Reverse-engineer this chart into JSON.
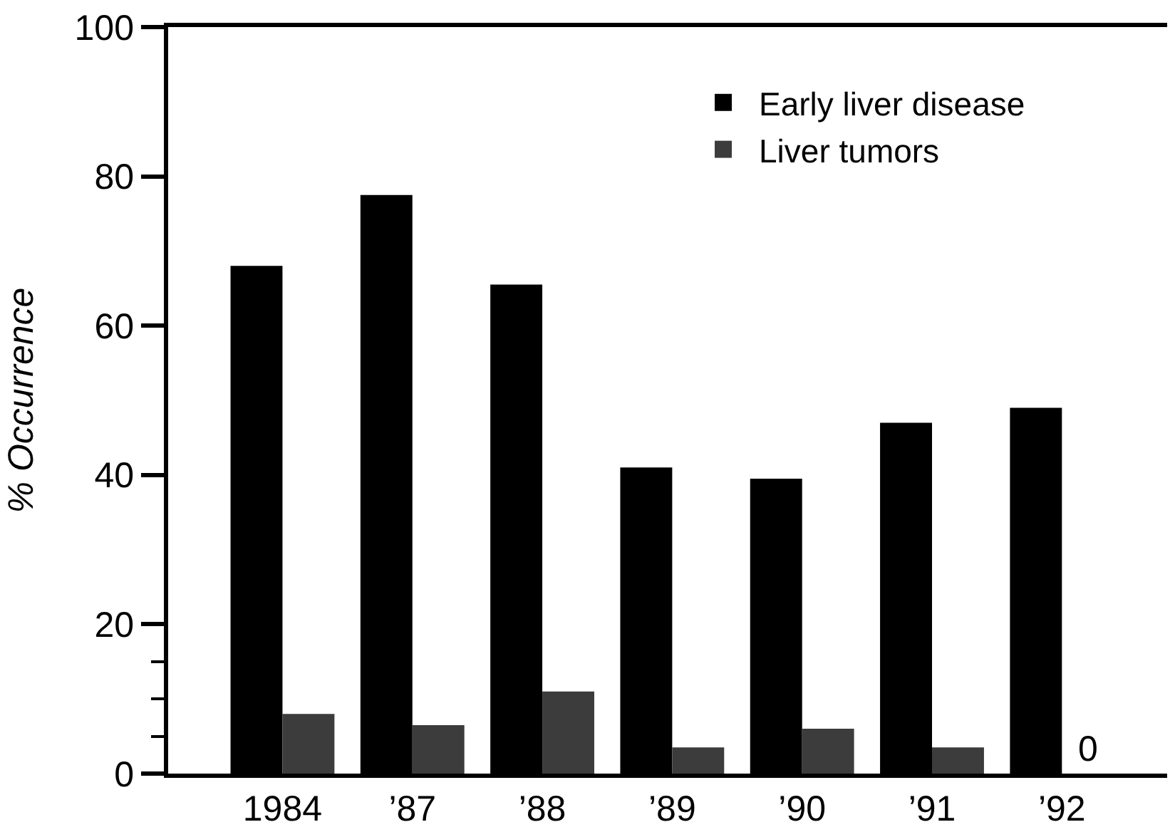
{
  "chart_data": {
    "type": "bar",
    "ylabel": "% Occurrence",
    "categories": [
      "1984",
      "’87",
      "’88",
      "’89",
      "’90",
      "’91",
      "’92"
    ],
    "series": [
      {
        "name": "Early liver disease",
        "color": "#000000",
        "values": [
          68,
          77.5,
          65.5,
          41,
          39.5,
          47,
          49
        ]
      },
      {
        "name": "Liver tumors",
        "color": "#3c3c3c",
        "values": [
          8,
          6.5,
          11,
          3.5,
          6,
          3.5,
          0
        ],
        "value_labels": [
          null,
          null,
          null,
          null,
          null,
          null,
          "0"
        ]
      }
    ],
    "ylim": [
      0,
      100
    ],
    "yticks": [
      0,
      {
        "value": 5,
        "label": null
      },
      {
        "value": 10,
        "label": null
      },
      {
        "value": 15,
        "label": null
      },
      20,
      40,
      60,
      80,
      100
    ],
    "legend": "top right"
  }
}
